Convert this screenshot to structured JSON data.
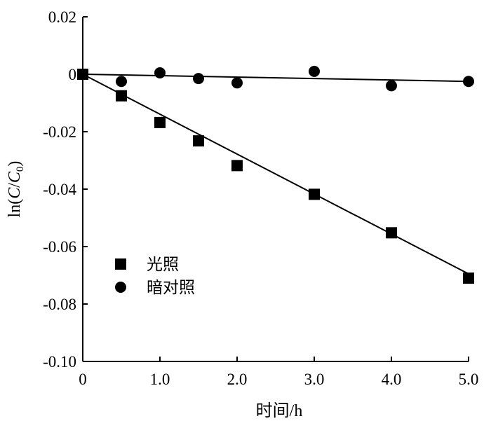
{
  "chart_data": {
    "type": "scatter",
    "title": "",
    "xlabel": "时间/h",
    "ylabel": "ln(C/C0)",
    "xlim": [
      0,
      5.0
    ],
    "ylim": [
      -0.1,
      0.02
    ],
    "x_ticks": [
      {
        "value": 0,
        "label": "0"
      },
      {
        "value": 1,
        "label": "1.0"
      },
      {
        "value": 2,
        "label": "2.0"
      },
      {
        "value": 3,
        "label": "3.0"
      },
      {
        "value": 4,
        "label": "4.0"
      },
      {
        "value": 5,
        "label": "5.0"
      }
    ],
    "y_ticks": [
      {
        "value": 0.02,
        "label": "0.02"
      },
      {
        "value": 0,
        "label": "0"
      },
      {
        "value": -0.02,
        "label": "-0.02"
      },
      {
        "value": -0.04,
        "label": "-0.04"
      },
      {
        "value": -0.06,
        "label": "-0.06"
      },
      {
        "value": -0.08,
        "label": "-0.08"
      },
      {
        "value": -0.1,
        "label": "-0.10"
      }
    ],
    "grid": false,
    "legend_position": "lower-left",
    "series": [
      {
        "name": "光照",
        "marker": "square",
        "color": "#000000",
        "x": [
          0,
          0.5,
          1.0,
          1.5,
          2.0,
          3.0,
          4.0,
          5.0
        ],
        "y": [
          0.0,
          -0.0075,
          -0.0168,
          -0.0232,
          -0.0318,
          -0.0418,
          -0.0552,
          -0.071
        ],
        "fit": {
          "x": [
            0,
            5.0
          ],
          "y": [
            0.0,
            -0.0695
          ]
        }
      },
      {
        "name": "暗对照",
        "marker": "circle",
        "color": "#000000",
        "x": [
          0,
          0.5,
          1.0,
          1.5,
          2.0,
          3.0,
          4.0,
          5.0
        ],
        "y": [
          0.0,
          -0.0025,
          0.0005,
          -0.0015,
          -0.003,
          0.001,
          -0.004,
          -0.0025
        ],
        "fit": {
          "x": [
            0,
            5.0
          ],
          "y": [
            0.0,
            -0.0025
          ]
        }
      }
    ]
  }
}
